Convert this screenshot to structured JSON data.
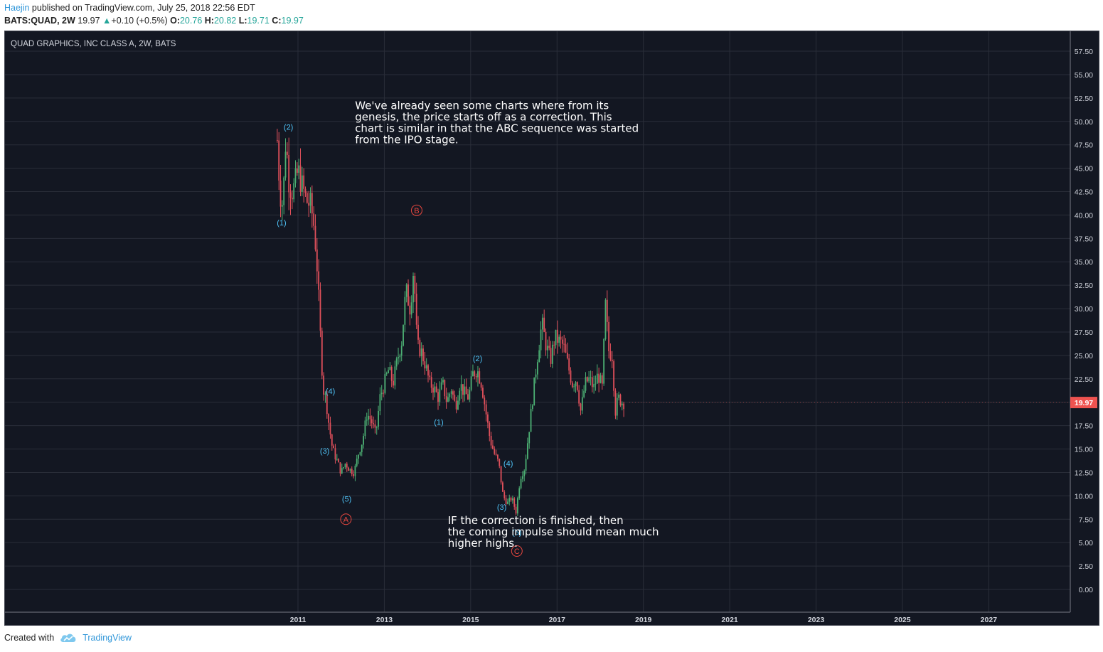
{
  "header": {
    "author": "Haejin",
    "published": "published on TradingView.com, July 25, 2018 22:56 EDT",
    "symbol": "BATS:QUAD, 2W",
    "last": "19.97",
    "change_arrow": "▲",
    "change": "+0.10 (+0.5%)",
    "o_label": "O:",
    "o_value": "20.76",
    "h_label": "H:",
    "h_value": "20.82",
    "l_label": "L:",
    "l_value": "19.71",
    "c_label": "C:",
    "c_value": "19.97"
  },
  "footer": {
    "created_with": "Created with",
    "brand": "TradingView"
  },
  "colors": {
    "background": "#131722",
    "up": "#4caf73",
    "down": "#e0505b",
    "wave_label": "#4fc3f7",
    "abc_label": "#e8473f",
    "price_tag": "#ef5350"
  },
  "chart_data": {
    "type": "candlestick",
    "title": "QUAD GRAPHICS, INC CLASS A, 2W, BATS",
    "ylim": [
      -2.5,
      60
    ],
    "y_ticks": [
      "57.50",
      "55.00",
      "52.50",
      "50.00",
      "47.50",
      "45.00",
      "42.50",
      "40.00",
      "37.50",
      "35.00",
      "32.50",
      "30.00",
      "27.50",
      "25.00",
      "22.50",
      "20.00",
      "17.50",
      "15.00",
      "12.50",
      "10.00",
      "7.50",
      "5.00",
      "2.50",
      "0.00"
    ],
    "x_ticks": [
      "2011",
      "2013",
      "2015",
      "2017",
      "2019",
      "2021",
      "2023",
      "2025",
      "2027"
    ],
    "last_price": "19.97",
    "price_path": [
      [
        2010.52,
        48.0
      ],
      [
        2010.58,
        42.5
      ],
      [
        2010.65,
        41.0
      ],
      [
        2010.72,
        48.5
      ],
      [
        2010.78,
        44.0
      ],
      [
        2010.85,
        42.5
      ],
      [
        2010.92,
        43.0
      ],
      [
        2011.0,
        44.8
      ],
      [
        2011.1,
        43.0
      ],
      [
        2011.2,
        41.5
      ],
      [
        2011.3,
        41.0
      ],
      [
        2011.38,
        38.5
      ],
      [
        2011.45,
        34.0
      ],
      [
        2011.52,
        27.0
      ],
      [
        2011.58,
        21.5
      ],
      [
        2011.65,
        20.3
      ],
      [
        2011.72,
        17.5
      ],
      [
        2011.8,
        15.0
      ],
      [
        2011.9,
        13.8
      ],
      [
        2012.0,
        12.5
      ],
      [
        2012.1,
        13.5
      ],
      [
        2012.2,
        12.8
      ],
      [
        2012.3,
        12.5
      ],
      [
        2012.4,
        14.5
      ],
      [
        2012.5,
        16.0
      ],
      [
        2012.6,
        18.8
      ],
      [
        2012.7,
        18.0
      ],
      [
        2012.8,
        16.5
      ],
      [
        2012.9,
        20.5
      ],
      [
        2013.0,
        22.0
      ],
      [
        2013.1,
        23.5
      ],
      [
        2013.2,
        22.0
      ],
      [
        2013.3,
        24.5
      ],
      [
        2013.4,
        26.5
      ],
      [
        2013.5,
        32.0
      ],
      [
        2013.6,
        30.0
      ],
      [
        2013.68,
        34.5
      ],
      [
        2013.76,
        26.0
      ],
      [
        2013.85,
        25.5
      ],
      [
        2013.95,
        24.0
      ],
      [
        2014.05,
        22.0
      ],
      [
        2014.15,
        21.5
      ],
      [
        2014.25,
        20.5
      ],
      [
        2014.35,
        22.0
      ],
      [
        2014.45,
        20.0
      ],
      [
        2014.55,
        21.5
      ],
      [
        2014.65,
        19.5
      ],
      [
        2014.75,
        22.0
      ],
      [
        2014.85,
        21.0
      ],
      [
        2014.95,
        20.5
      ],
      [
        2015.05,
        23.0
      ],
      [
        2015.15,
        23.5
      ],
      [
        2015.25,
        22.0
      ],
      [
        2015.35,
        19.0
      ],
      [
        2015.45,
        16.0
      ],
      [
        2015.55,
        14.5
      ],
      [
        2015.65,
        13.5
      ],
      [
        2015.75,
        10.0
      ],
      [
        2015.85,
        9.2
      ],
      [
        2015.95,
        9.8
      ],
      [
        2016.05,
        8.3
      ],
      [
        2016.15,
        12.0
      ],
      [
        2016.25,
        13.0
      ],
      [
        2016.35,
        17.0
      ],
      [
        2016.45,
        21.0
      ],
      [
        2016.55,
        25.0
      ],
      [
        2016.65,
        28.5
      ],
      [
        2016.75,
        26.0
      ],
      [
        2016.85,
        24.5
      ],
      [
        2016.95,
        27.0
      ],
      [
        2017.05,
        26.5
      ],
      [
        2017.15,
        26.0
      ],
      [
        2017.25,
        24.0
      ],
      [
        2017.35,
        22.0
      ],
      [
        2017.45,
        22.5
      ],
      [
        2017.55,
        19.0
      ],
      [
        2017.65,
        22.0
      ],
      [
        2017.75,
        22.5
      ],
      [
        2017.85,
        21.5
      ],
      [
        2017.95,
        23.0
      ],
      [
        2018.05,
        21.5
      ],
      [
        2018.12,
        30.5
      ],
      [
        2018.2,
        25.5
      ],
      [
        2018.28,
        25.0
      ],
      [
        2018.35,
        19.0
      ],
      [
        2018.42,
        20.5
      ],
      [
        2018.5,
        20.0
      ],
      [
        2018.55,
        19.97
      ]
    ],
    "wave_labels": [
      {
        "text": "(2)",
        "x": 2010.78,
        "y": 49.4,
        "kind": "wave"
      },
      {
        "text": "(1)",
        "x": 2010.62,
        "y": 39.2,
        "kind": "wave"
      },
      {
        "text": "(4)",
        "x": 2011.75,
        "y": 21.2,
        "kind": "wave"
      },
      {
        "text": "(3)",
        "x": 2011.62,
        "y": 14.8,
        "kind": "wave"
      },
      {
        "text": "(5)",
        "x": 2012.13,
        "y": 9.7,
        "kind": "wave"
      },
      {
        "text": "(1)",
        "x": 2014.26,
        "y": 17.9,
        "kind": "wave"
      },
      {
        "text": "(2)",
        "x": 2015.16,
        "y": 24.7,
        "kind": "wave"
      },
      {
        "text": "(4)",
        "x": 2015.87,
        "y": 13.5,
        "kind": "wave"
      },
      {
        "text": "(3)",
        "x": 2015.72,
        "y": 8.8,
        "kind": "wave"
      },
      {
        "text": "(5)",
        "x": 2016.07,
        "y": 6.1,
        "kind": "wave"
      },
      {
        "text": "A",
        "x": 2012.11,
        "y": 7.5,
        "kind": "abc"
      },
      {
        "text": "B",
        "x": 2013.75,
        "y": 40.5,
        "kind": "abc"
      },
      {
        "text": "C",
        "x": 2016.07,
        "y": 4.1,
        "kind": "abc"
      }
    ],
    "annotations": [
      {
        "lines": [
          "We've already seen some charts where from its",
          "genesis, the price starts off as a correction. This",
          "chart is similar in that the ABC sequence was started",
          "from the IPO stage."
        ],
        "x": 2015.22,
        "y": 51.3
      },
      {
        "lines": [
          "IF the correction is finished, then",
          "the coming impulse should mean much",
          "higher highs."
        ],
        "x": 2017.37,
        "y": 7.0
      }
    ]
  }
}
